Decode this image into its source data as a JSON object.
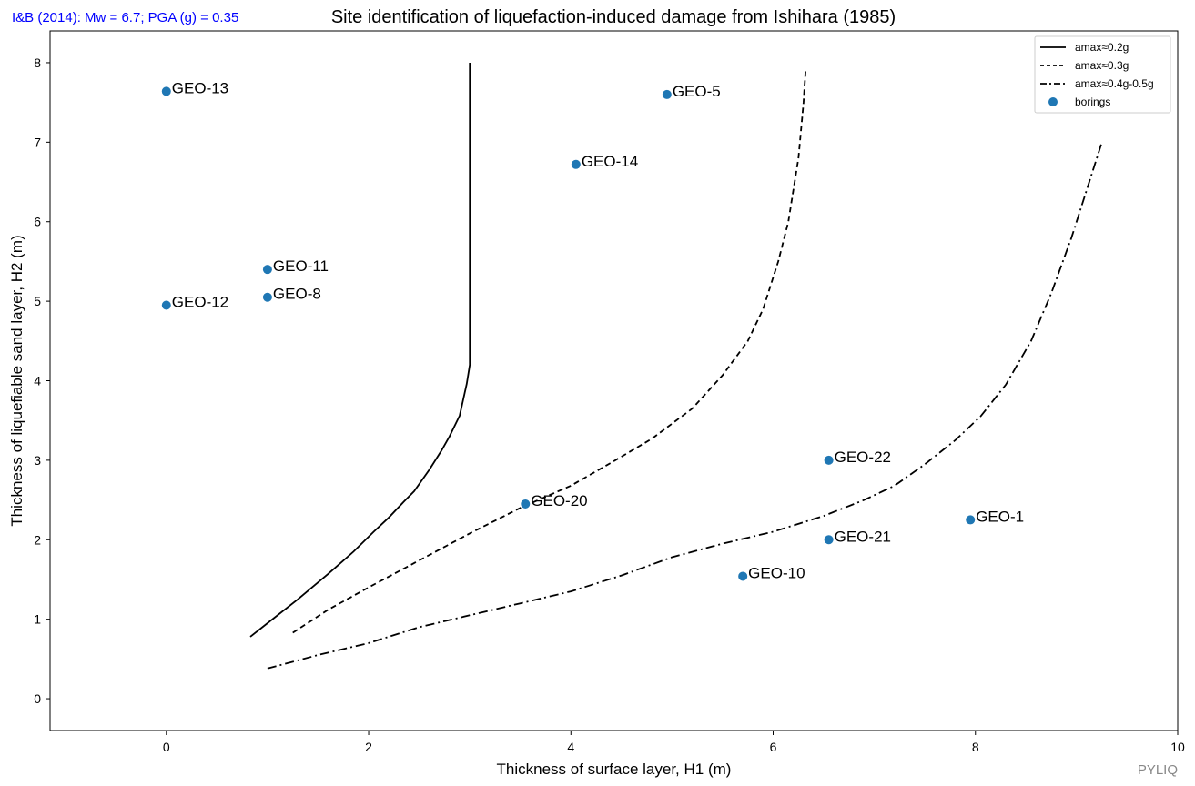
{
  "header": {
    "subtitle": "I&B (2014): Mw = 6.7; PGA (g) = 0.35",
    "subtitle_color": "#0000ff",
    "watermark": "PYLIQ",
    "watermark_color": "#888888"
  },
  "chart_data": {
    "type": "line",
    "title": "Site identification of liquefaction-induced damage from Ishihara (1985)",
    "xlabel": "Thickness of surface layer, H1 (m)",
    "ylabel": "Thickness of liquefiable sand layer, H2 (m)",
    "xlim": [
      -1.15,
      10
    ],
    "ylim": [
      -0.4,
      8.4
    ],
    "xticks": [
      0,
      2,
      4,
      6,
      8,
      10
    ],
    "yticks": [
      0,
      1,
      2,
      3,
      4,
      5,
      6,
      7,
      8
    ],
    "grid": false,
    "legend_position": "top-right",
    "series": [
      {
        "name": "amax≈0.2g",
        "style": "solid",
        "color": "#000000",
        "points": [
          [
            0.83,
            0.78
          ],
          [
            1.0,
            0.95
          ],
          [
            1.3,
            1.25
          ],
          [
            1.6,
            1.57
          ],
          [
            1.85,
            1.85
          ],
          [
            2.05,
            2.1
          ],
          [
            2.2,
            2.28
          ],
          [
            2.35,
            2.48
          ],
          [
            2.45,
            2.61
          ],
          [
            2.6,
            2.88
          ],
          [
            2.72,
            3.12
          ],
          [
            2.8,
            3.3
          ],
          [
            2.9,
            3.56
          ],
          [
            2.97,
            3.96
          ],
          [
            3.0,
            4.2
          ],
          [
            3.0,
            8.0
          ]
        ]
      },
      {
        "name": "amax≈0.3g",
        "style": "dashed",
        "color": "#000000",
        "points": [
          [
            1.25,
            0.83
          ],
          [
            1.6,
            1.12
          ],
          [
            2.0,
            1.4
          ],
          [
            2.5,
            1.74
          ],
          [
            3.0,
            2.08
          ],
          [
            3.5,
            2.4
          ],
          [
            4.0,
            2.68
          ],
          [
            4.4,
            2.97
          ],
          [
            4.8,
            3.27
          ],
          [
            5.2,
            3.65
          ],
          [
            5.5,
            4.07
          ],
          [
            5.75,
            4.5
          ],
          [
            5.9,
            4.9
          ],
          [
            6.05,
            5.5
          ],
          [
            6.15,
            6.0
          ],
          [
            6.25,
            6.8
          ],
          [
            6.3,
            7.5
          ],
          [
            6.32,
            7.9
          ]
        ]
      },
      {
        "name": "amax≈0.4g-0.5g",
        "style": "dashdot",
        "color": "#000000",
        "points": [
          [
            1.0,
            0.38
          ],
          [
            1.5,
            0.55
          ],
          [
            2.0,
            0.7
          ],
          [
            2.5,
            0.9
          ],
          [
            3.0,
            1.05
          ],
          [
            3.5,
            1.2
          ],
          [
            4.0,
            1.35
          ],
          [
            4.5,
            1.55
          ],
          [
            5.0,
            1.78
          ],
          [
            5.5,
            1.95
          ],
          [
            6.0,
            2.1
          ],
          [
            6.5,
            2.3
          ],
          [
            6.9,
            2.5
          ],
          [
            7.2,
            2.68
          ],
          [
            7.5,
            2.95
          ],
          [
            7.8,
            3.25
          ],
          [
            8.05,
            3.55
          ],
          [
            8.3,
            3.95
          ],
          [
            8.55,
            4.5
          ],
          [
            8.75,
            5.1
          ],
          [
            8.95,
            5.8
          ],
          [
            9.1,
            6.4
          ],
          [
            9.25,
            7.0
          ]
        ]
      },
      {
        "name": "borings",
        "style": "marker",
        "color": "#1f77b4",
        "points": [
          {
            "label": "GEO-13",
            "x": 0.0,
            "y": 7.64
          },
          {
            "label": "GEO-5",
            "x": 4.95,
            "y": 7.6
          },
          {
            "label": "GEO-14",
            "x": 4.05,
            "y": 6.72
          },
          {
            "label": "GEO-11",
            "x": 1.0,
            "y": 5.4
          },
          {
            "label": "GEO-8",
            "x": 1.0,
            "y": 5.05
          },
          {
            "label": "GEO-12",
            "x": 0.0,
            "y": 4.95
          },
          {
            "label": "GEO-22",
            "x": 6.55,
            "y": 3.0
          },
          {
            "label": "GEO-20",
            "x": 3.55,
            "y": 2.45
          },
          {
            "label": "GEO-1",
            "x": 7.95,
            "y": 2.25
          },
          {
            "label": "GEO-21",
            "x": 6.55,
            "y": 2.0
          },
          {
            "label": "GEO-10",
            "x": 5.7,
            "y": 1.54
          }
        ]
      }
    ]
  }
}
